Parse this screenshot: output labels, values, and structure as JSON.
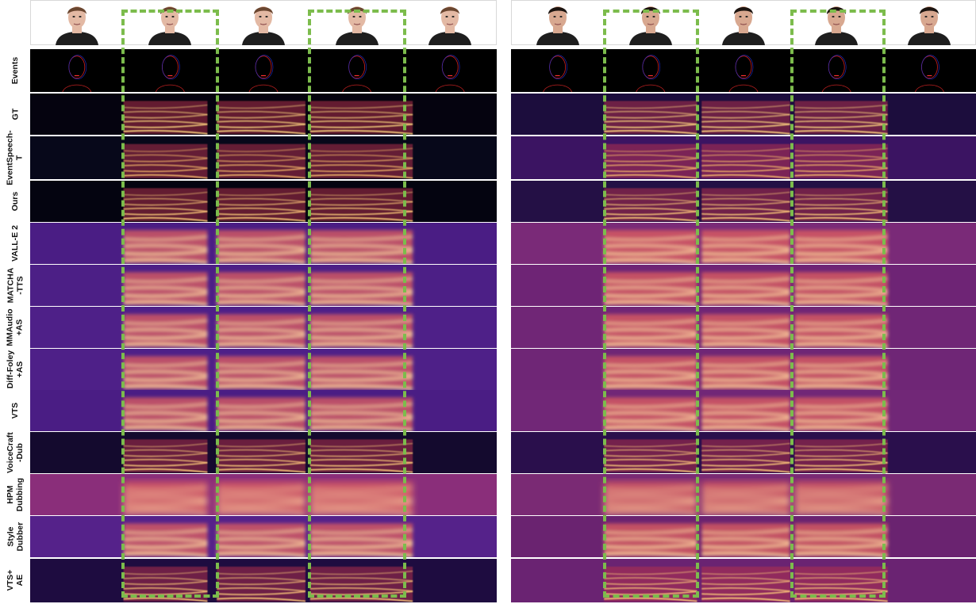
{
  "rows": [
    {
      "id": "events",
      "label": "Events"
    },
    {
      "id": "gt",
      "label": "GT"
    },
    {
      "id": "eventspeech_t",
      "label": "EventSpeech-\nT"
    },
    {
      "id": "ours",
      "label": "Ours"
    },
    {
      "id": "valle2",
      "label": "VALL-E 2"
    },
    {
      "id": "matcha_tts",
      "label": "MATCHA\n-TTS"
    },
    {
      "id": "mmaudio_as",
      "label": "MMAudio\n+AS"
    },
    {
      "id": "difffoley_as",
      "label": "Diff-Foley\n+AS"
    },
    {
      "id": "vts",
      "label": "VTS"
    },
    {
      "id": "voicecraft_dub",
      "label": "VoiceCraft\n-Dub"
    },
    {
      "id": "hpm_dubbing",
      "label": "HPM\nDubbing"
    },
    {
      "id": "style_dubber",
      "label": "Style\nDubber"
    },
    {
      "id": "vts_ae",
      "label": "VTS+\nAE"
    }
  ],
  "colors": {
    "highlight_box": "#7cbc4c",
    "spectrogram_low": "#1a0a3a",
    "spectrogram_high": "#fff2b0"
  }
}
